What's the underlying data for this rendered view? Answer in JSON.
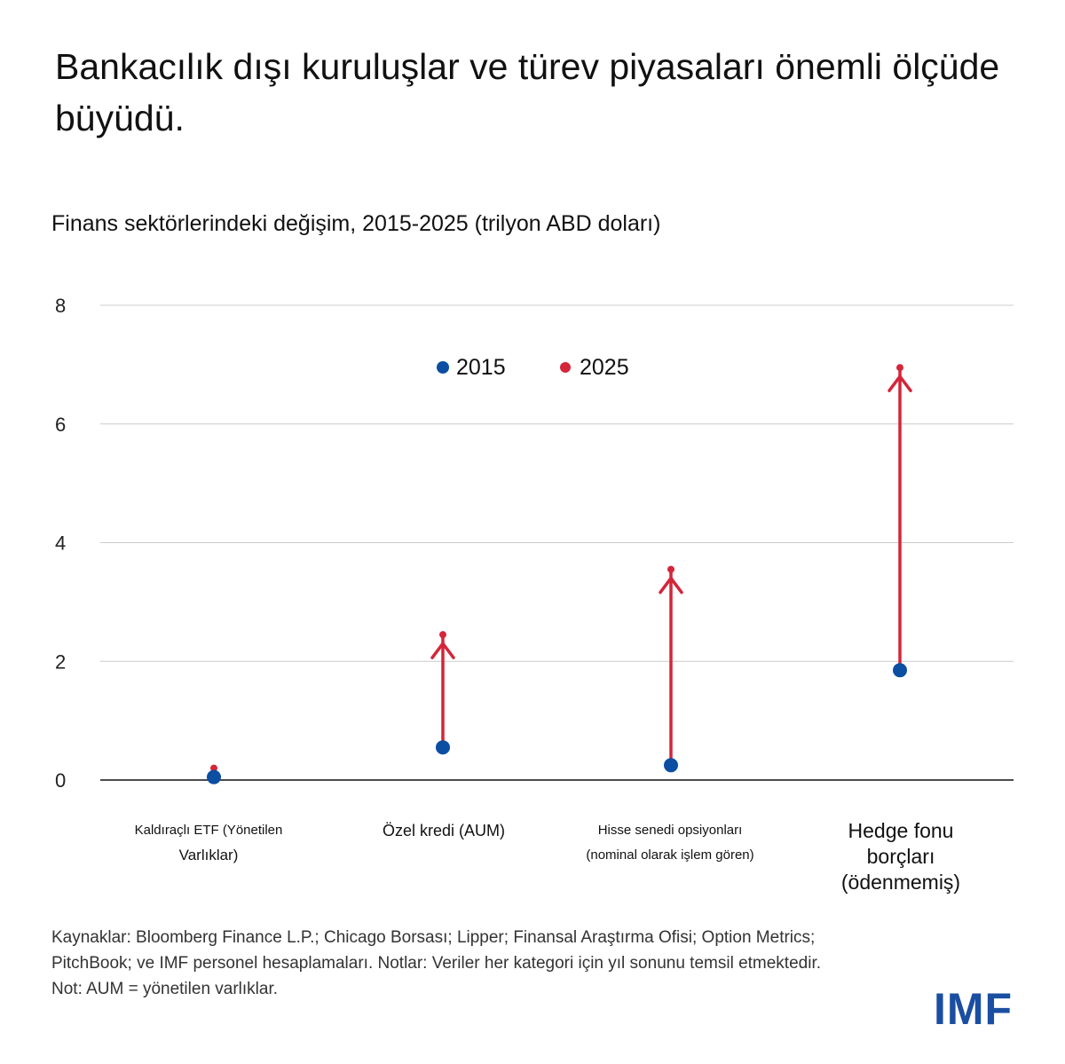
{
  "title": "Bankacılık dışı kuruluşlar ve türev piyasaları önemli ölçüde büyüdü.",
  "subtitle": "Finans sektörlerindeki değişim, 2015-2025 (trilyon ABD doları)",
  "colors": {
    "y2015": "#0b4ea2",
    "y2025": "#d3263a",
    "grid": "#cccccc",
    "axis": "#111111",
    "logo": "#1a4ea1"
  },
  "chart_data": {
    "type": "scatter",
    "style": "arrow-dot",
    "ylim": [
      0,
      8
    ],
    "yticks": [
      "0",
      "2",
      "4",
      "6",
      "8"
    ],
    "grid": true,
    "legend_position": "top-center",
    "categories": [
      "Kaldıraçlı ETF (Yönetilen Varlıklar)",
      "Özel kredi (AUM)",
      "Hisse senedi opsiyonları (nominal olarak işlem gören)",
      "Hedge fonu borçları (ödenmemiş)"
    ],
    "series": [
      {
        "name": "2015",
        "values": [
          0.05,
          0.55,
          0.25,
          1.85
        ]
      },
      {
        "name": "2025",
        "values": [
          0.2,
          2.45,
          3.55,
          6.95
        ]
      }
    ]
  },
  "categories_display": [
    {
      "line1": "Kaldıraçlı ETF (Yönetilen",
      "line2": "Varlıklar)",
      "line3": ""
    },
    {
      "line1": "Özel kredi (AUM)",
      "line2": "",
      "line3": ""
    },
    {
      "line1": "Hisse senedi opsiyonları",
      "line2": "(nominal olarak işlem gören)",
      "line3": ""
    },
    {
      "line1": "Hedge fonu",
      "line2": "borçları",
      "line3": "(ödenmemiş)"
    }
  ],
  "source_text": "Kaynaklar: Bloomberg Finance L.P.; Chicago Borsası; Lipper; Finansal Araştırma Ofisi; Option Metrics; PitchBook; ve IMF personel hesaplamaları. Notlar: Veriler her kategori için yıl sonunu temsil etmektedir. Not: AUM = yönetilen varlıklar.",
  "logo_text": "IMF"
}
